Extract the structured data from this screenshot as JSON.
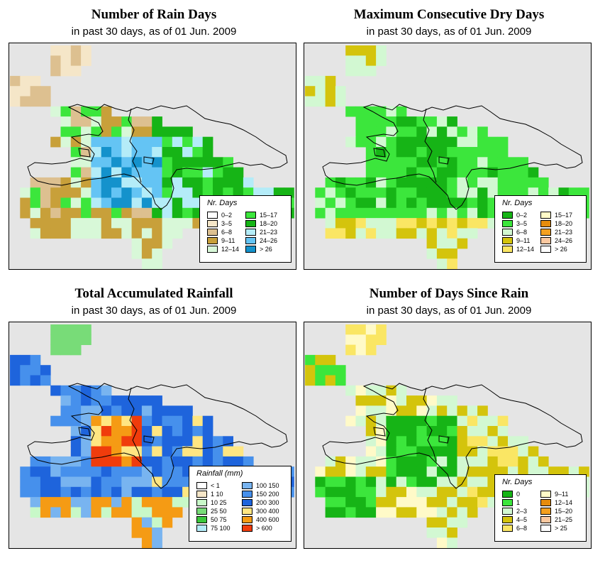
{
  "panels": [
    {
      "title": "Number of Rain Days",
      "subtitle": "in past 30 days, as of  01 Jun. 2009",
      "legend_title": "Nr. Days",
      "legend": [
        {
          "label": "0–2",
          "color": "#ffffff"
        },
        {
          "label": "3–5",
          "color": "#f5e6c8"
        },
        {
          "label": "6–8",
          "color": "#ddc090"
        },
        {
          "label": "9–11",
          "color": "#c8a03a"
        },
        {
          "label": "12–14",
          "color": "#d8f8d8"
        },
        {
          "label": "15–17",
          "color": "#3ce63c"
        },
        {
          "label": "18–20",
          "color": "#16b416"
        },
        {
          "label": "21–23",
          "color": "#b4ecf8"
        },
        {
          "label": "24–26",
          "color": "#64c4f4"
        },
        {
          "label": "> 26",
          "color": "#1492cc"
        }
      ]
    },
    {
      "title": "Maximum Consecutive Dry Days",
      "subtitle": "in past 30 days, as of  01 Jun. 2009",
      "legend_title": "Nr. Days",
      "legend": [
        {
          "label": "0–2",
          "color": "#16b416"
        },
        {
          "label": "3–5",
          "color": "#3ce63c"
        },
        {
          "label": "6–8",
          "color": "#d2f8d2"
        },
        {
          "label": "9–11",
          "color": "#d4c40c"
        },
        {
          "label": "12–14",
          "color": "#fae664"
        },
        {
          "label": "15–17",
          "color": "#fffac8"
        },
        {
          "label": "18–20",
          "color": "#e68c0c"
        },
        {
          "label": "21–23",
          "color": "#f4a020"
        },
        {
          "label": "24–26",
          "color": "#fac8a0"
        },
        {
          "label": "> 26",
          "color": "#ffffff"
        }
      ]
    },
    {
      "title": "Total Accumulated Rainfall",
      "subtitle": "in past 30 days, as of  01 Jun. 2009",
      "legend_title": "Rainfall (mm)",
      "legend": [
        {
          "label": "< 1",
          "color": "#ffffff"
        },
        {
          "label": "1   10",
          "color": "#f5e6c8"
        },
        {
          "label": "10   25",
          "color": "#c8f8c8"
        },
        {
          "label": "25   50",
          "color": "#78dc78"
        },
        {
          "label": "50   75",
          "color": "#3cc83c"
        },
        {
          "label": "75   100",
          "color": "#b4ecf8"
        },
        {
          "label": "100   150",
          "color": "#78b4f0"
        },
        {
          "label": "150   200",
          "color": "#4690ec"
        },
        {
          "label": "200   300",
          "color": "#1e64dc"
        },
        {
          "label": "300   400",
          "color": "#ffe682"
        },
        {
          "label": "400   600",
          "color": "#f59b14"
        },
        {
          "label": "> 600",
          "color": "#f03c0c"
        }
      ]
    },
    {
      "title": "Number of Days Since Rain",
      "subtitle": "in past 30 days, as of  01 Jun. 2009",
      "legend_title": "Nr. Days",
      "legend": [
        {
          "label": "0",
          "color": "#16b416"
        },
        {
          "label": "1",
          "color": "#3ce63c"
        },
        {
          "label": "2–3",
          "color": "#d2f8d2"
        },
        {
          "label": "4–5",
          "color": "#d4c40c"
        },
        {
          "label": "6–8",
          "color": "#fae664"
        },
        {
          "label": "9–11",
          "color": "#fffac8"
        },
        {
          "label": "12–14",
          "color": "#e68c0c"
        },
        {
          "label": "15–20",
          "color": "#f4a020"
        },
        {
          "label": "21–25",
          "color": "#fac8a0"
        },
        {
          "label": "> 25",
          "color": "#ffffff"
        }
      ]
    }
  ]
}
